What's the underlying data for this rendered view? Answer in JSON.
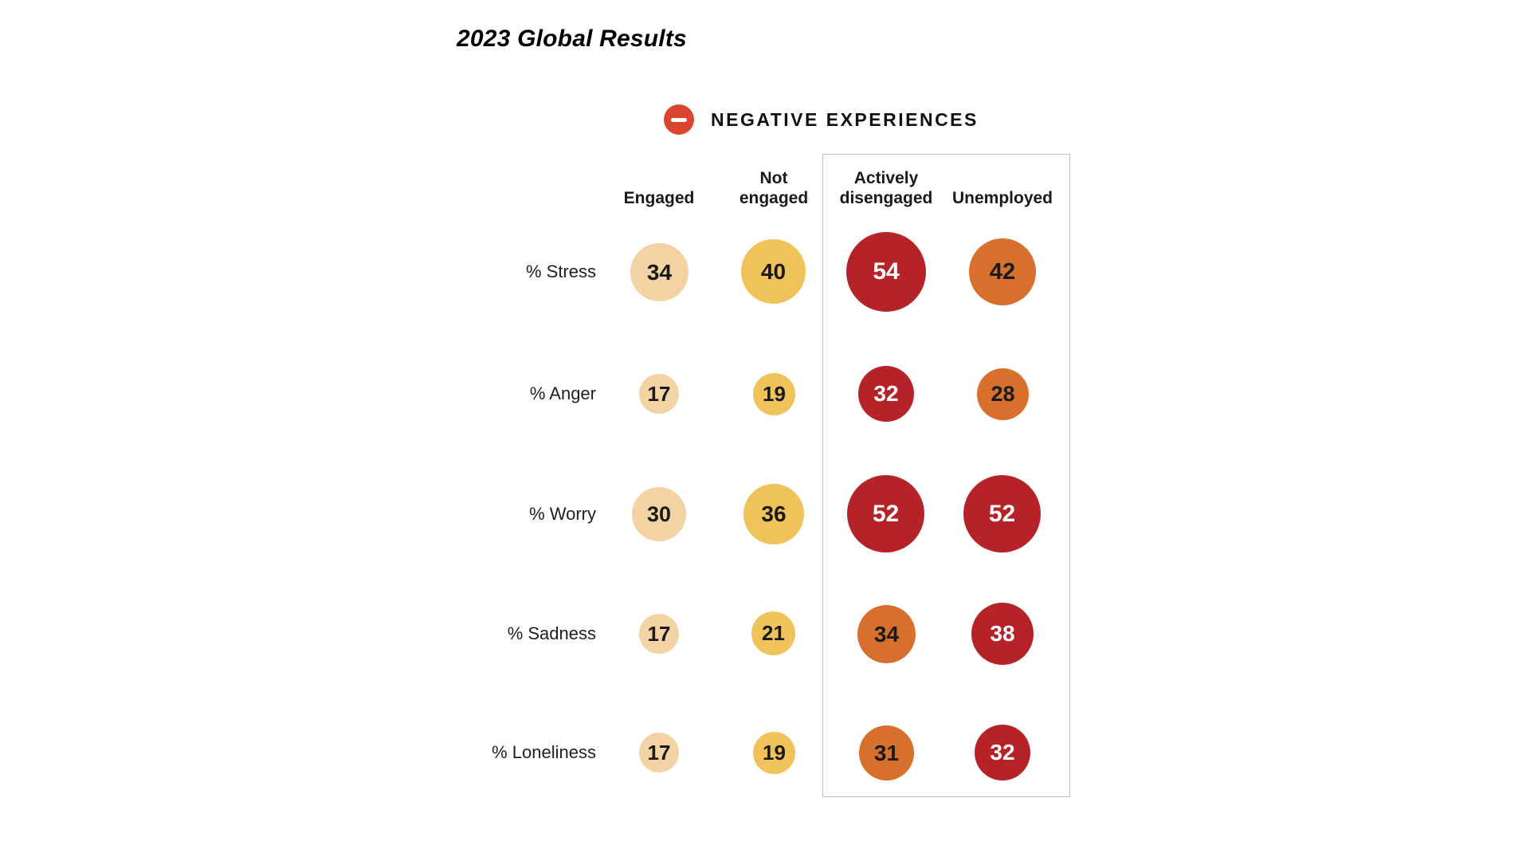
{
  "title": "2023 Global Results",
  "legend": {
    "icon": "minus-icon",
    "icon_color": "#D9452F",
    "label": "NEGATIVE EXPERIENCES"
  },
  "palette": {
    "peach": "#F3D2A3",
    "gold": "#EFC25A",
    "orange": "#D8702D",
    "red": "#B52328",
    "legend_icon_red": "#D9452F",
    "box_border_gray": "#BDBDBD",
    "text_black": "#1A1A1A",
    "value_text_on_red": "#FFFFFF"
  },
  "highlight_box_columns": [
    "Actively disengaged",
    "Unemployed"
  ],
  "chart_data": {
    "type": "table",
    "encoding": "bubble-size-by-value",
    "title": "NEGATIVE EXPERIENCES",
    "subtitle": "2023 Global Results",
    "unit": "%",
    "categories": [
      "% Stress",
      "% Anger",
      "% Worry",
      "% Sadness",
      "% Loneliness"
    ],
    "series": [
      {
        "name": "Engaged",
        "values": [
          34,
          17,
          30,
          17,
          17
        ],
        "colors": [
          "peach",
          "peach",
          "peach",
          "peach",
          "peach"
        ]
      },
      {
        "name": "Not engaged",
        "values": [
          40,
          19,
          36,
          21,
          19
        ],
        "colors": [
          "gold",
          "gold",
          "gold",
          "gold",
          "gold"
        ]
      },
      {
        "name": "Actively disengaged",
        "values": [
          54,
          32,
          52,
          34,
          31
        ],
        "colors": [
          "red",
          "red",
          "red",
          "orange",
          "orange"
        ]
      },
      {
        "name": "Unemployed",
        "values": [
          42,
          28,
          52,
          38,
          32
        ],
        "colors": [
          "orange",
          "orange",
          "red",
          "red",
          "red"
        ]
      }
    ]
  }
}
